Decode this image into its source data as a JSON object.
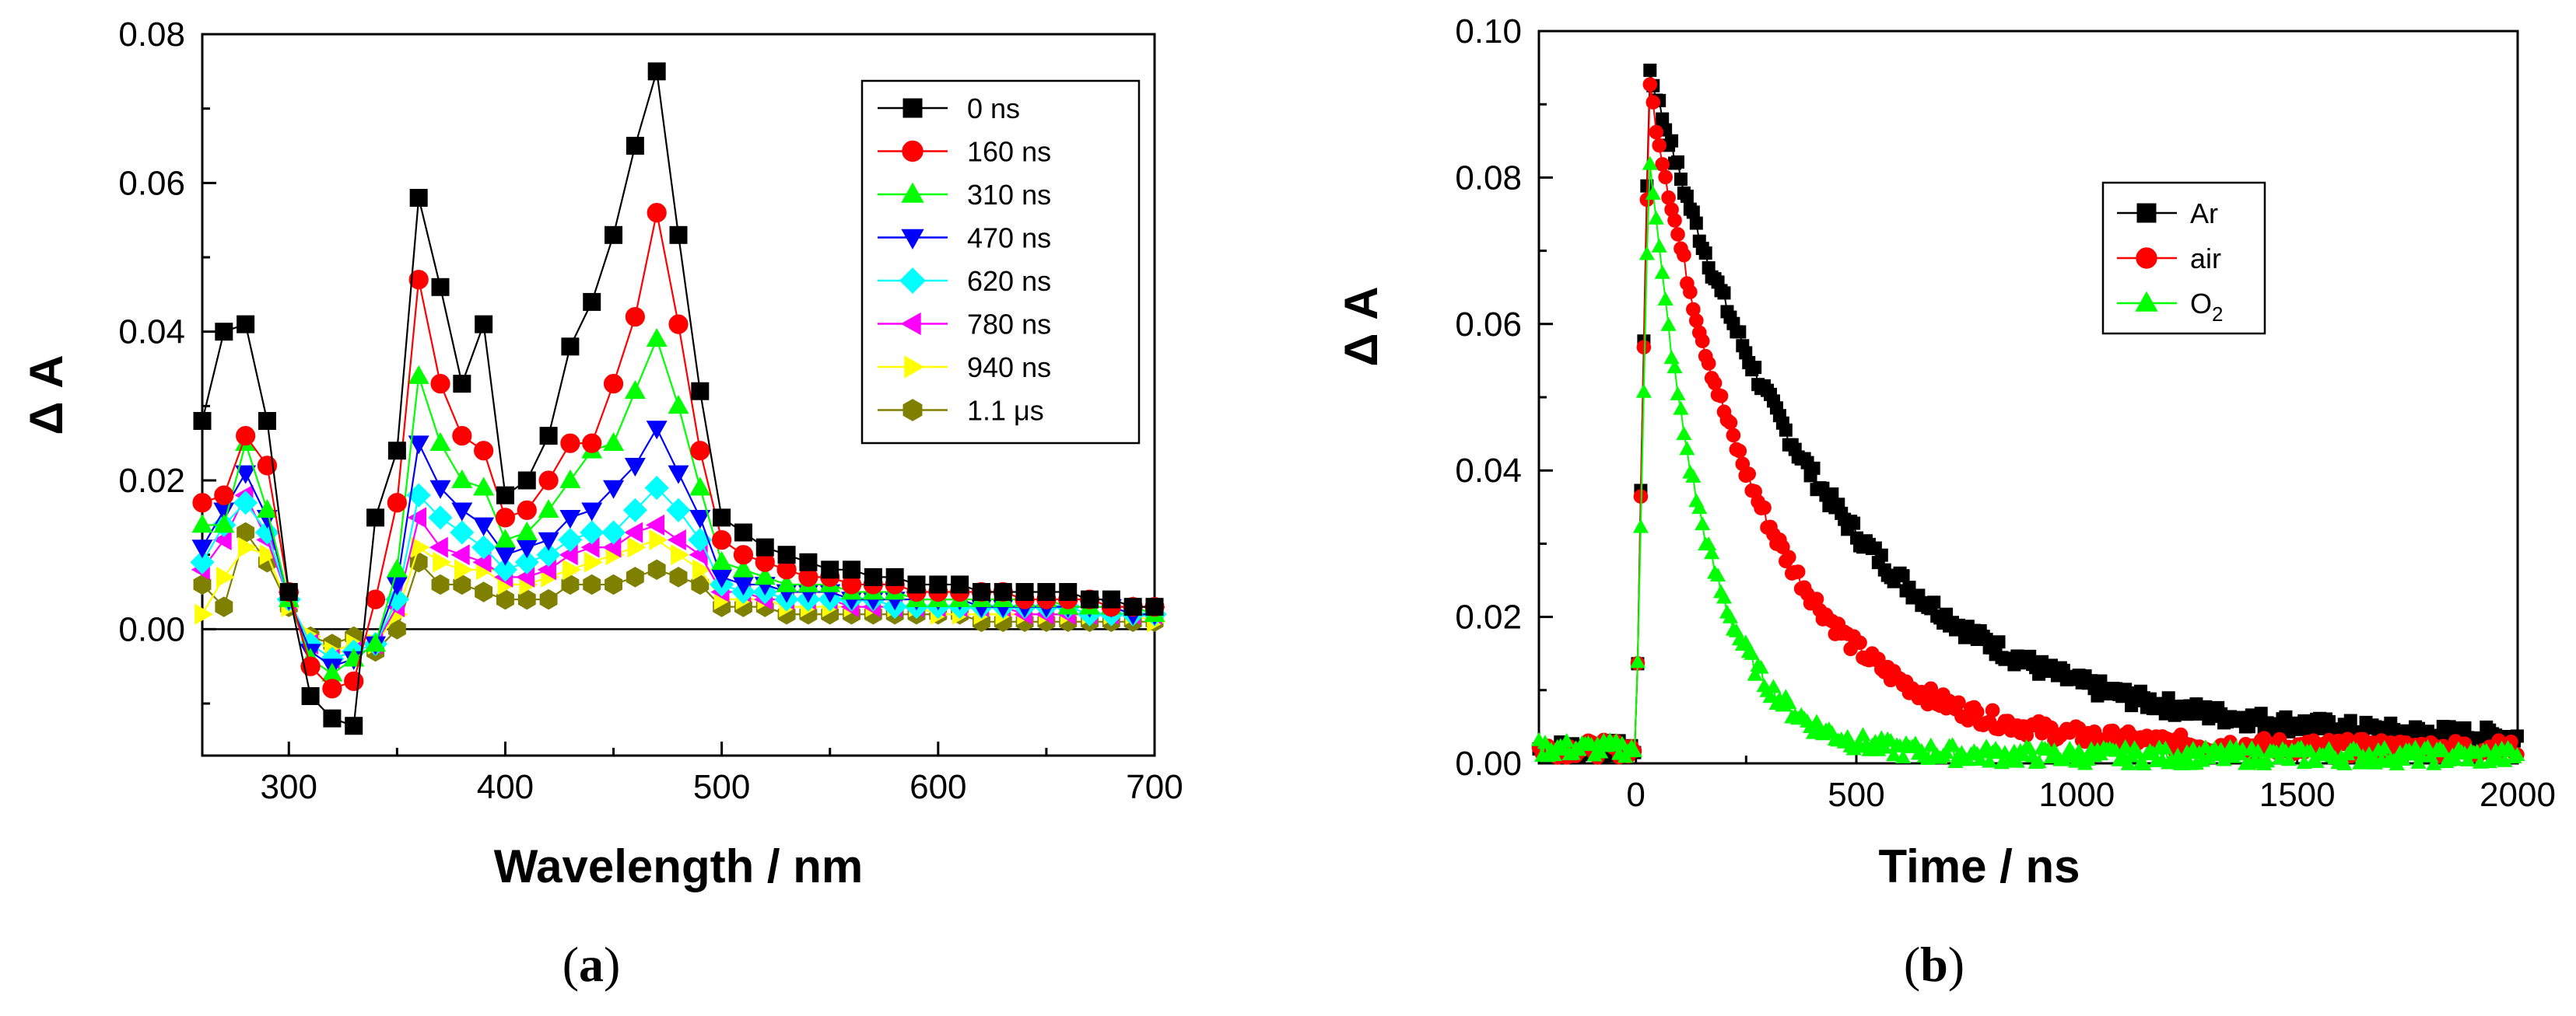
{
  "chart_data": [
    {
      "panel": "(a)",
      "type": "line",
      "xlabel": "Wavelength / nm",
      "ylabel": "Δ A",
      "xlim": [
        260,
        700
      ],
      "ylim": [
        -0.017,
        0.08
      ],
      "xticks": [
        300,
        400,
        500,
        600,
        700
      ],
      "xtick_labels": [
        "300",
        "400",
        "500",
        "600",
        "700"
      ],
      "yticks": [
        0.0,
        0.02,
        0.04,
        0.06,
        0.08
      ],
      "ytick_labels": [
        "0.00",
        "0.02",
        "0.04",
        "0.06",
        "0.08"
      ],
      "zero_line": true,
      "legend_position": "top-right",
      "x": [
        260,
        270,
        280,
        290,
        300,
        310,
        320,
        330,
        340,
        350,
        360,
        370,
        380,
        390,
        400,
        410,
        420,
        430,
        440,
        450,
        460,
        470,
        480,
        490,
        500,
        510,
        520,
        530,
        540,
        550,
        560,
        570,
        580,
        590,
        600,
        610,
        620,
        630,
        640,
        650,
        660,
        670,
        680,
        690,
        700
      ],
      "series": [
        {
          "name": "0 ns",
          "color": "#000000",
          "marker": "square",
          "values": [
            0.028,
            0.04,
            0.041,
            0.028,
            0.005,
            -0.009,
            -0.012,
            -0.013,
            0.015,
            0.024,
            0.058,
            0.046,
            0.033,
            0.041,
            0.018,
            0.02,
            0.026,
            0.038,
            0.044,
            0.053,
            0.065,
            0.075,
            0.053,
            0.032,
            0.015,
            0.013,
            0.011,
            0.01,
            0.009,
            0.008,
            0.008,
            0.007,
            0.007,
            0.006,
            0.006,
            0.006,
            0.005,
            0.005,
            0.005,
            0.005,
            0.005,
            0.004,
            0.004,
            0.003,
            0.003
          ]
        },
        {
          "name": "160 ns",
          "color": "#ff0000",
          "marker": "circle",
          "values": [
            0.017,
            0.018,
            0.026,
            0.022,
            0.005,
            -0.005,
            -0.008,
            -0.007,
            0.004,
            0.017,
            0.047,
            0.033,
            0.026,
            0.024,
            0.015,
            0.016,
            0.02,
            0.025,
            0.025,
            0.033,
            0.042,
            0.056,
            0.041,
            0.024,
            0.012,
            0.01,
            0.009,
            0.008,
            0.007,
            0.007,
            0.006,
            0.006,
            0.006,
            0.005,
            0.005,
            0.005,
            0.005,
            0.005,
            0.004,
            0.004,
            0.004,
            0.004,
            0.003,
            0.003,
            0.003
          ]
        },
        {
          "name": "310 ns",
          "color": "#00ff00",
          "marker": "triangle-up",
          "values": [
            0.014,
            0.014,
            0.025,
            0.016,
            0.004,
            -0.004,
            -0.006,
            -0.004,
            -0.002,
            0.008,
            0.034,
            0.025,
            0.02,
            0.019,
            0.012,
            0.013,
            0.016,
            0.02,
            0.024,
            0.025,
            0.032,
            0.039,
            0.03,
            0.019,
            0.009,
            0.008,
            0.007,
            0.006,
            0.006,
            0.006,
            0.005,
            0.005,
            0.005,
            0.004,
            0.004,
            0.004,
            0.004,
            0.004,
            0.004,
            0.004,
            0.003,
            0.003,
            0.003,
            0.003,
            0.002
          ]
        },
        {
          "name": "470 ns",
          "color": "#0000ff",
          "marker": "triangle-down",
          "values": [
            0.011,
            0.016,
            0.021,
            0.015,
            0.004,
            -0.003,
            -0.005,
            -0.004,
            -0.002,
            0.006,
            0.025,
            0.019,
            0.016,
            0.014,
            0.01,
            0.011,
            0.012,
            0.015,
            0.016,
            0.019,
            0.022,
            0.027,
            0.021,
            0.015,
            0.007,
            0.006,
            0.006,
            0.005,
            0.005,
            0.005,
            0.004,
            0.004,
            0.004,
            0.004,
            0.004,
            0.004,
            0.003,
            0.003,
            0.003,
            0.003,
            0.003,
            0.003,
            0.003,
            0.002,
            0.002
          ]
        },
        {
          "name": "620 ns",
          "color": "#00ffff",
          "marker": "diamond",
          "values": [
            0.009,
            0.014,
            0.017,
            0.013,
            0.004,
            -0.002,
            -0.004,
            -0.003,
            -0.002,
            0.004,
            0.018,
            0.015,
            0.013,
            0.011,
            0.008,
            0.009,
            0.01,
            0.012,
            0.013,
            0.013,
            0.016,
            0.019,
            0.016,
            0.012,
            0.006,
            0.005,
            0.005,
            0.004,
            0.004,
            0.004,
            0.004,
            0.004,
            0.003,
            0.003,
            0.003,
            0.003,
            0.003,
            0.003,
            0.003,
            0.003,
            0.003,
            0.002,
            0.002,
            0.002,
            0.002
          ]
        },
        {
          "name": "780 ns",
          "color": "#ff00ff",
          "marker": "triangle-left",
          "values": [
            0.008,
            0.012,
            0.018,
            0.012,
            0.004,
            -0.002,
            -0.004,
            -0.003,
            -0.002,
            0.003,
            0.015,
            0.011,
            0.01,
            0.009,
            0.007,
            0.007,
            0.008,
            0.01,
            0.011,
            0.011,
            0.013,
            0.014,
            0.012,
            0.01,
            0.005,
            0.005,
            0.004,
            0.004,
            0.004,
            0.004,
            0.003,
            0.003,
            0.003,
            0.003,
            0.003,
            0.003,
            0.003,
            0.003,
            0.002,
            0.002,
            0.002,
            0.002,
            0.002,
            0.002,
            0.002
          ]
        },
        {
          "name": "940 ns",
          "color": "#ffff00",
          "marker": "triangle-right",
          "values": [
            0.002,
            0.007,
            0.011,
            0.01,
            0.003,
            -0.001,
            -0.003,
            -0.002,
            -0.002,
            0.002,
            0.011,
            0.009,
            0.008,
            0.008,
            0.006,
            0.006,
            0.007,
            0.008,
            0.009,
            0.01,
            0.011,
            0.012,
            0.01,
            0.008,
            0.004,
            0.004,
            0.004,
            0.003,
            0.003,
            0.003,
            0.003,
            0.003,
            0.003,
            0.003,
            0.002,
            0.002,
            0.002,
            0.002,
            0.002,
            0.002,
            0.002,
            0.002,
            0.002,
            0.002,
            0.001
          ]
        },
        {
          "name": "1.1 μs",
          "color": "#808000",
          "marker": "hexagon",
          "values": [
            0.006,
            0.003,
            0.013,
            0.009,
            0.003,
            -0.001,
            -0.002,
            -0.001,
            -0.003,
            0.0,
            0.009,
            0.006,
            0.006,
            0.005,
            0.004,
            0.004,
            0.004,
            0.006,
            0.006,
            0.006,
            0.007,
            0.008,
            0.007,
            0.006,
            0.003,
            0.003,
            0.003,
            0.002,
            0.002,
            0.002,
            0.002,
            0.002,
            0.002,
            0.002,
            0.002,
            0.002,
            0.001,
            0.001,
            0.001,
            0.001,
            0.001,
            0.001,
            0.001,
            0.001,
            0.001
          ]
        }
      ]
    },
    {
      "panel": "(b)",
      "type": "line",
      "xlabel": "Time / ns",
      "ylabel": "Δ A",
      "xlim": [
        -220,
        2000
      ],
      "ylim": [
        0.0,
        0.1
      ],
      "xticks": [
        0,
        500,
        1000,
        1500,
        2000
      ],
      "xtick_labels": [
        "0",
        "500",
        "1000",
        "1500",
        "2000"
      ],
      "yticks": [
        0.0,
        0.02,
        0.04,
        0.06,
        0.08,
        0.1
      ],
      "ytick_labels": [
        "0.00",
        "0.02",
        "0.04",
        "0.06",
        "0.08",
        "0.10"
      ],
      "legend_position": "top-right",
      "baseline": 0.002,
      "rise_time_ns": 0,
      "peak_time_ns": 30,
      "series": [
        {
          "name": "Ar",
          "color": "#000000",
          "marker": "square",
          "peak": 0.095,
          "lifetime_ns": 400,
          "offset": 0.003,
          "noise": 0.0012
        },
        {
          "name": "air",
          "color": "#ff0000",
          "marker": "circle",
          "peak": 0.093,
          "lifetime_ns": 250,
          "offset": 0.002,
          "noise": 0.0012
        },
        {
          "name": "O2",
          "label_base": "O",
          "label_sub": "2",
          "color": "#00ff00",
          "marker": "triangle-up",
          "peak": 0.084,
          "lifetime_ns": 125,
          "offset": 0.001,
          "noise": 0.0012
        }
      ]
    }
  ],
  "figure_labels": {
    "a": {
      "open": "(",
      "letter": "a",
      "close": ")"
    },
    "b": {
      "open": "(",
      "letter": "b",
      "close": ")"
    }
  }
}
